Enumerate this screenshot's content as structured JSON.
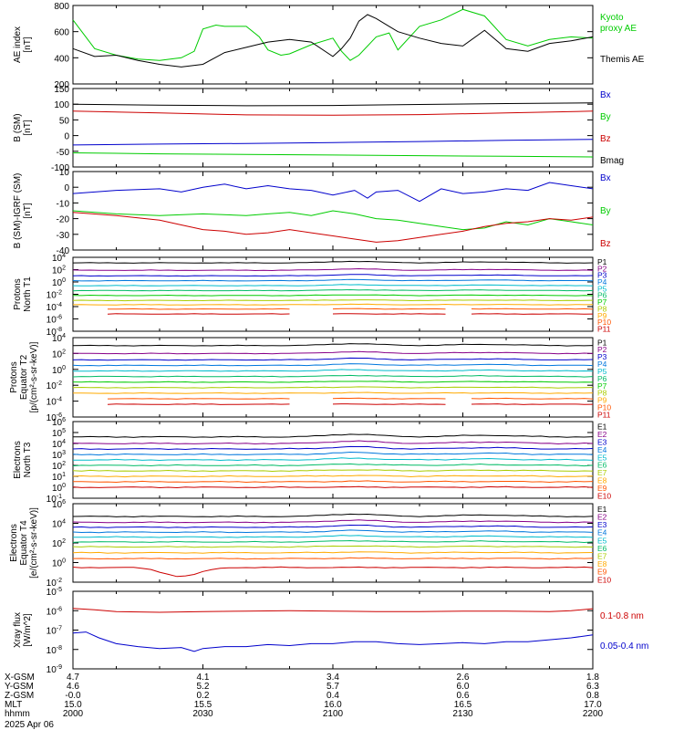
{
  "figure": {
    "date": "2025 Apr 06",
    "x_ticks": [
      "2000",
      "2030",
      "2100",
      "2130",
      "2200"
    ],
    "ephemeris": {
      "labels": [
        "X-GSM",
        "Y-GSM",
        "Z-GSM",
        "MLT",
        "hhmm"
      ],
      "columns": [
        [
          "4.7",
          "4.6",
          "-0.0",
          "15.0",
          "2000"
        ],
        [
          "4.1",
          "5.2",
          "0.2",
          "15.5",
          "2030"
        ],
        [
          "3.4",
          "5.7",
          "0.4",
          "16.0",
          "2100"
        ],
        [
          "2.6",
          "6.0",
          "0.6",
          "16.5",
          "2130"
        ],
        [
          "1.8",
          "6.3",
          "0.8",
          "17.0",
          "2200"
        ]
      ]
    }
  },
  "chart_data": [
    {
      "type": "line",
      "ylabel": [
        "AE index",
        "[nT]"
      ],
      "ylim": [
        200,
        800
      ],
      "yticks": [
        200,
        400,
        600,
        800
      ],
      "x_range": [
        0,
        120
      ],
      "x_unit": "minutes after 2000 UT",
      "series": [
        {
          "name": "Kyoto proxy AE",
          "label_lines": [
            "Kyoto",
            "proxy AE"
          ],
          "color": "#00cc00",
          "x": [
            0,
            5,
            10,
            15,
            20,
            25,
            28,
            30,
            33,
            35,
            40,
            43,
            45,
            48,
            50,
            55,
            60,
            62,
            64,
            66,
            70,
            73,
            75,
            80,
            85,
            90,
            95,
            100,
            105,
            110,
            115,
            120
          ],
          "y": [
            690,
            470,
            420,
            390,
            380,
            400,
            450,
            620,
            650,
            640,
            640,
            560,
            460,
            420,
            430,
            500,
            550,
            450,
            380,
            420,
            560,
            590,
            460,
            640,
            690,
            770,
            720,
            540,
            490,
            540,
            560,
            550
          ]
        },
        {
          "name": "Themis AE",
          "label_lines": [
            "Themis AE"
          ],
          "color": "#000000",
          "x": [
            0,
            5,
            10,
            15,
            20,
            25,
            30,
            35,
            40,
            45,
            50,
            55,
            60,
            62,
            64,
            66,
            68,
            70,
            73,
            75,
            80,
            85,
            90,
            95,
            100,
            105,
            110,
            115,
            120
          ],
          "y": [
            470,
            410,
            420,
            380,
            350,
            330,
            350,
            440,
            480,
            520,
            540,
            520,
            410,
            470,
            550,
            680,
            730,
            700,
            640,
            600,
            550,
            510,
            490,
            610,
            470,
            450,
            510,
            530,
            560
          ]
        }
      ]
    },
    {
      "type": "line",
      "ylabel": [
        "B (SM)",
        "[nT]"
      ],
      "ylim": [
        -100,
        150
      ],
      "yticks": [
        -100,
        -50,
        0,
        50,
        100,
        150
      ],
      "x_range": [
        0,
        120
      ],
      "series": [
        {
          "name": "Bx",
          "color": "#0000cc",
          "x": [
            0,
            20,
            40,
            60,
            80,
            100,
            120
          ],
          "y": [
            -30,
            -27,
            -25,
            -22,
            -19,
            -15,
            -12
          ]
        },
        {
          "name": "By",
          "color": "#00cc00",
          "x": [
            0,
            20,
            40,
            60,
            80,
            100,
            120
          ],
          "y": [
            -55,
            -58,
            -60,
            -62,
            -64,
            -66,
            -68
          ]
        },
        {
          "name": "Bz",
          "color": "#cc0000",
          "x": [
            0,
            20,
            40,
            60,
            80,
            100,
            120
          ],
          "y": [
            78,
            72,
            66,
            65,
            67,
            72,
            78
          ]
        },
        {
          "name": "Bmag",
          "color": "#000000",
          "x": [
            0,
            20,
            40,
            60,
            80,
            100,
            120
          ],
          "y": [
            100,
            97,
            95,
            96,
            99,
            102,
            104
          ]
        }
      ]
    },
    {
      "type": "line",
      "ylabel": [
        "B (SM)-IGRF (SM)",
        "[nT]"
      ],
      "ylim": [
        -40,
        10
      ],
      "yticks": [
        -40,
        -30,
        -20,
        -10,
        0,
        10
      ],
      "x_range": [
        0,
        120
      ],
      "series": [
        {
          "name": "Bx",
          "color": "#0000cc",
          "x": [
            0,
            10,
            20,
            25,
            30,
            35,
            40,
            45,
            50,
            55,
            60,
            65,
            68,
            70,
            75,
            80,
            85,
            90,
            95,
            100,
            105,
            110,
            115,
            120
          ],
          "y": [
            -4,
            -2,
            -1,
            -3,
            0,
            2,
            -1,
            1,
            -1,
            -2,
            -5,
            -2,
            -7,
            -3,
            -2,
            -9,
            -1,
            -4,
            -3,
            -1,
            -2,
            3,
            1,
            -1
          ]
        },
        {
          "name": "By",
          "color": "#00cc00",
          "x": [
            0,
            10,
            20,
            30,
            40,
            45,
            50,
            55,
            60,
            65,
            70,
            75,
            80,
            85,
            90,
            95,
            100,
            105,
            110,
            115,
            120
          ],
          "y": [
            -15,
            -17,
            -18,
            -17,
            -18,
            -17,
            -16,
            -18,
            -15,
            -17,
            -20,
            -21,
            -23,
            -25,
            -27,
            -26,
            -22,
            -24,
            -20,
            -22,
            -24
          ]
        },
        {
          "name": "Bz",
          "color": "#cc0000",
          "x": [
            0,
            10,
            20,
            25,
            30,
            35,
            40,
            45,
            50,
            55,
            60,
            65,
            70,
            75,
            80,
            85,
            90,
            95,
            100,
            105,
            110,
            115,
            120
          ],
          "y": [
            -16,
            -18,
            -21,
            -24,
            -27,
            -28,
            -30,
            -29,
            -27,
            -29,
            -31,
            -33,
            -35,
            -34,
            -32,
            -30,
            -28,
            -25,
            -23,
            -22,
            -20,
            -21,
            -19
          ]
        }
      ]
    },
    {
      "type": "line",
      "scale": "log",
      "ylabel": [
        "Protons",
        "North T1"
      ],
      "ylim_exp": [
        -8,
        4
      ],
      "ytick_exp": [
        -8,
        -6,
        -4,
        -2,
        0,
        2,
        4
      ],
      "x_range": [
        0,
        120
      ],
      "legend": [
        "P1",
        "P2",
        "P3",
        "P4",
        "P5",
        "P6",
        "P7",
        "P8",
        "P9",
        "P10",
        "P11"
      ],
      "colors": [
        "#000000",
        "#880088",
        "#0000cc",
        "#0077dd",
        "#00bbcc",
        "#00bb66",
        "#00cc00",
        "#aacc00",
        "#ffaa00",
        "#ff5500",
        "#cc0000"
      ],
      "series_log_base": [
        3.1,
        1.9,
        1.0,
        0.2,
        -0.6,
        -1.4,
        -2.2,
        -3.0,
        -3.7,
        -4.4,
        -5.2
      ],
      "dip_center_x": 60,
      "dip_depth": 0.4,
      "gap_series": [
        9,
        10
      ]
    },
    {
      "type": "line",
      "scale": "log",
      "ylabel": [
        "Protons",
        "Equator T2",
        "[p/(cm²-s-sr-keV)]"
      ],
      "ylim_exp": [
        -6,
        4
      ],
      "ytick_exp": [
        -6,
        -4,
        -2,
        0,
        2,
        4
      ],
      "x_range": [
        0,
        120
      ],
      "legend": [
        "P1",
        "P2",
        "P3",
        "P4",
        "P5",
        "P6",
        "P7",
        "P8",
        "P9",
        "P10",
        "P11"
      ],
      "colors": [
        "#000000",
        "#880088",
        "#0000cc",
        "#0077dd",
        "#00bbcc",
        "#00bb66",
        "#00cc00",
        "#aacc00",
        "#ffaa00",
        "#ff5500",
        "#cc0000"
      ],
      "series_log_base": [
        3.0,
        2.0,
        1.2,
        0.5,
        -0.2,
        -0.9,
        -1.6,
        -2.3,
        -3.0,
        -3.7,
        -4.4
      ],
      "dip_center_x": 60,
      "dip_depth": 0.35,
      "gap_series": [
        9,
        10
      ]
    },
    {
      "type": "line",
      "scale": "log",
      "ylabel": [
        "Electrons",
        "North T3"
      ],
      "ylim_exp": [
        -1,
        6
      ],
      "ytick_exp": [
        -1,
        0,
        1,
        2,
        3,
        4,
        5,
        6
      ],
      "x_range": [
        0,
        120
      ],
      "legend": [
        "E1",
        "E2",
        "E3",
        "E4",
        "E5",
        "E6",
        "E7",
        "E8",
        "E9",
        "E10"
      ],
      "colors": [
        "#000000",
        "#880088",
        "#0000cc",
        "#0077dd",
        "#00bbcc",
        "#00bb66",
        "#aacc00",
        "#ffaa00",
        "#ff5500",
        "#cc0000"
      ],
      "series_log_base": [
        4.6,
        4.0,
        3.5,
        3.0,
        2.5,
        2.0,
        1.5,
        1.0,
        0.5,
        0.0
      ],
      "dip_center_x": 60,
      "dip_depth": 0.1,
      "gap_series": []
    },
    {
      "type": "line",
      "scale": "log",
      "ylabel": [
        "Electrons",
        "Equator T4",
        "[e/(cm²-s-sr-keV)]"
      ],
      "ylim_exp": [
        -2,
        6
      ],
      "ytick_exp": [
        -2,
        0,
        2,
        4,
        6
      ],
      "x_range": [
        0,
        120
      ],
      "legend": [
        "E1",
        "E2",
        "E3",
        "E4",
        "E5",
        "E6",
        "E7",
        "E8",
        "E9",
        "E10"
      ],
      "colors": [
        "#000000",
        "#880088",
        "#0000cc",
        "#0077dd",
        "#00bbcc",
        "#00bb66",
        "#aacc00",
        "#ffaa00",
        "#ff5500",
        "#cc0000"
      ],
      "series_log_base": [
        4.7,
        4.1,
        3.6,
        3.1,
        2.6,
        2.1,
        1.6,
        1.0,
        0.4,
        -0.5
      ],
      "dip_center_x": 25,
      "dip_depth": 0.5,
      "gap_series": []
    },
    {
      "type": "line",
      "scale": "log",
      "ylabel": [
        "Xray flux",
        "[W/m^2]"
      ],
      "ylim_exp": [
        -9,
        -5
      ],
      "ytick_exp": [
        -9,
        -8,
        -7,
        -6,
        -5
      ],
      "x_range": [
        0,
        120
      ],
      "series": [
        {
          "name": "0.1-0.8 nm",
          "color": "#cc0000",
          "x": [
            0,
            5,
            10,
            20,
            30,
            40,
            50,
            60,
            70,
            80,
            90,
            100,
            110,
            115,
            120
          ],
          "y_exp": [
            -5.88,
            -5.95,
            -6.05,
            -6.08,
            -6.05,
            -6.02,
            -6.0,
            -6.02,
            -6.05,
            -6.05,
            -6.02,
            -6.02,
            -6.05,
            -6.0,
            -5.9
          ]
        },
        {
          "name": "0.05-0.4 nm",
          "color": "#0000cc",
          "x": [
            0,
            3,
            6,
            10,
            15,
            20,
            25,
            28,
            30,
            35,
            40,
            45,
            50,
            55,
            60,
            65,
            70,
            75,
            80,
            85,
            90,
            95,
            100,
            105,
            110,
            115,
            120
          ],
          "y_exp": [
            -7.15,
            -7.1,
            -7.4,
            -7.7,
            -7.85,
            -7.95,
            -7.9,
            -8.1,
            -7.95,
            -7.85,
            -7.85,
            -7.75,
            -7.8,
            -7.7,
            -7.7,
            -7.6,
            -7.6,
            -7.7,
            -7.75,
            -7.7,
            -7.65,
            -7.7,
            -7.6,
            -7.6,
            -7.5,
            -7.4,
            -7.25
          ]
        }
      ]
    }
  ]
}
